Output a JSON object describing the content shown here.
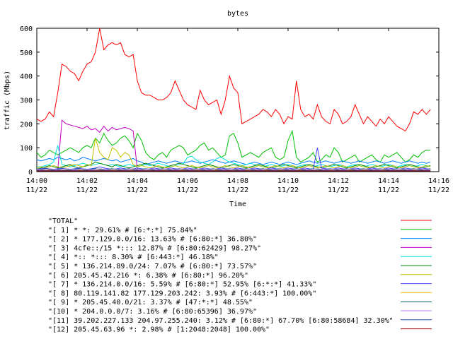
{
  "chart_data": {
    "type": "line",
    "title": "bytes",
    "xlabel": "Time",
    "ylabel": "traffic (Mbps)",
    "ylim": [
      0,
      600
    ],
    "yticks": [
      0,
      100,
      200,
      300,
      400,
      500,
      600
    ],
    "xlim_minutes": [
      "14:00",
      "14:16"
    ],
    "xticks": [
      {
        "time": "14:00",
        "date": "11/22"
      },
      {
        "time": "14:02",
        "date": "11/22"
      },
      {
        "time": "14:04",
        "date": "11/22"
      },
      {
        "time": "14:06",
        "date": "11/22"
      },
      {
        "time": "14:08",
        "date": "11/22"
      },
      {
        "time": "14:10",
        "date": "11/22"
      },
      {
        "time": "14:12",
        "date": "11/22"
      },
      {
        "time": "14:14",
        "date": "11/22"
      },
      {
        "time": "14:16",
        "date": "11/22"
      }
    ],
    "grid": false,
    "legend_position": "bottom",
    "x_start": "14:00",
    "x_step_seconds": 10,
    "series": [
      {
        "name": "\"TOTAL\"",
        "color": "#ff0000",
        "values": [
          220,
          210,
          220,
          250,
          230,
          330,
          450,
          440,
          420,
          410,
          380,
          420,
          450,
          460,
          500,
          600,
          510,
          530,
          540,
          530,
          540,
          490,
          480,
          490,
          380,
          330,
          320,
          320,
          310,
          300,
          300,
          310,
          330,
          380,
          340,
          300,
          280,
          270,
          260,
          340,
          300,
          280,
          290,
          300,
          240,
          300,
          400,
          350,
          330,
          200,
          210,
          220,
          230,
          240,
          260,
          250,
          230,
          260,
          240,
          200,
          230,
          220,
          380,
          260,
          230,
          240,
          220,
          280,
          230,
          210,
          200,
          260,
          240,
          200,
          210,
          230,
          280,
          240,
          200,
          230,
          210,
          190,
          220,
          200,
          230,
          210,
          190,
          180,
          170,
          200,
          250,
          240,
          260,
          240,
          260
        ]
      },
      {
        "name": "\"[ 1] * *: 29.61% # [6:*:*] 75.84%\"",
        "color": "#00c000",
        "values": [
          80,
          60,
          70,
          90,
          80,
          70,
          80,
          90,
          100,
          90,
          80,
          100,
          110,
          100,
          140,
          120,
          160,
          130,
          110,
          120,
          140,
          150,
          130,
          100,
          160,
          130,
          80,
          60,
          50,
          70,
          80,
          60,
          90,
          100,
          110,
          100,
          70,
          80,
          90,
          110,
          120,
          90,
          100,
          80,
          60,
          70,
          150,
          160,
          120,
          60,
          70,
          80,
          70,
          60,
          80,
          90,
          100,
          60,
          50,
          60,
          130,
          170,
          60,
          40,
          50,
          60,
          80,
          40,
          50,
          70,
          60,
          100,
          80,
          40,
          50,
          60,
          70,
          40,
          50,
          60,
          70,
          50,
          40,
          70,
          60,
          70,
          80,
          60,
          40,
          50,
          70,
          60,
          80,
          90,
          90
        ]
      },
      {
        "name": "\"[ 2] * 177.129.0.0/16: 13.63% # [6:80:*] 36.80%\"",
        "color": "#0080ff",
        "values": [
          50,
          45,
          50,
          55,
          50,
          60,
          55,
          50,
          55,
          45,
          50,
          60,
          55,
          50,
          45,
          50,
          55,
          50,
          45,
          50,
          40,
          45,
          50,
          55,
          45,
          40,
          30,
          35,
          40,
          45,
          40,
          35,
          40,
          45,
          40,
          35,
          40,
          45,
          40,
          35,
          40,
          45,
          50,
          45,
          40,
          35,
          40,
          45,
          40,
          35,
          30,
          35,
          40,
          35,
          30,
          35,
          40,
          35,
          30,
          35,
          40,
          35,
          30,
          35,
          40,
          45,
          40,
          35,
          40,
          45,
          40,
          35,
          40,
          45,
          40,
          35,
          40,
          45,
          40,
          35,
          40,
          45,
          40,
          35,
          40,
          45,
          40,
          35,
          40,
          45,
          40,
          35,
          40,
          35,
          40
        ]
      },
      {
        "name": "\"[ 3] 4cfe::/15 *::: 12.87% # [6:80:62429] 98.27%\"",
        "color": "#c000c0",
        "values": [
          5,
          5,
          5,
          5,
          5,
          5,
          215,
          200,
          195,
          190,
          185,
          180,
          190,
          175,
          180,
          165,
          190,
          170,
          185,
          175,
          180,
          185,
          180,
          170,
          10,
          5,
          5,
          5,
          5,
          5,
          5,
          5,
          5,
          5,
          5,
          5,
          5,
          5,
          5,
          5,
          5,
          5,
          5,
          5,
          5,
          5,
          5,
          5,
          5,
          5,
          5,
          5,
          5,
          5,
          5,
          5,
          5,
          5,
          5,
          5,
          5,
          5,
          5,
          5,
          5,
          5,
          5,
          5,
          5,
          5,
          5,
          5,
          5,
          5,
          5,
          5,
          5,
          5,
          5,
          5,
          5,
          5,
          5,
          5,
          5,
          5,
          5,
          5,
          5,
          5,
          5,
          5,
          5,
          5,
          5
        ]
      },
      {
        "name": "\"[ 4] *:: *::: 8.30% # [6:443:*] 46.18%\"",
        "color": "#00e0e0",
        "values": [
          20,
          20,
          25,
          30,
          40,
          110,
          30,
          25,
          20,
          25,
          30,
          35,
          30,
          25,
          30,
          35,
          30,
          25,
          30,
          25,
          20,
          25,
          30,
          25,
          20,
          25,
          30,
          25,
          30,
          35,
          30,
          25,
          20,
          25,
          30,
          35,
          60,
          65,
          50,
          40,
          35,
          30,
          40,
          55,
          60,
          50,
          40,
          35,
          30,
          25,
          30,
          35,
          30,
          25,
          20,
          25,
          30,
          25,
          20,
          25,
          30,
          25,
          20,
          25,
          30,
          25,
          20,
          25,
          30,
          25,
          20,
          25,
          30,
          25,
          20,
          25,
          30,
          25,
          20,
          25,
          30,
          25,
          20,
          25,
          30,
          25,
          20,
          25,
          30,
          25,
          20,
          25,
          30,
          25,
          20
        ]
      },
      {
        "name": "\"[ 5] * 136.214.89.0/24: 7.07% # [6:80:*] 73.57%\"",
        "color": "#008000",
        "values": [
          10,
          15,
          20,
          25,
          20,
          15,
          20,
          25,
          30,
          20,
          15,
          20,
          25,
          30,
          40,
          35,
          30,
          25,
          20,
          30,
          25,
          20,
          15,
          20,
          25,
          30,
          35,
          30,
          25,
          20,
          15,
          20,
          25,
          30,
          35,
          30,
          25,
          20,
          15,
          20,
          25,
          30,
          25,
          20,
          15,
          20,
          25,
          30,
          25,
          20,
          15,
          20,
          25,
          30,
          25,
          20,
          15,
          20,
          25,
          30,
          25,
          20,
          15,
          20,
          25,
          30,
          25,
          20,
          15,
          20,
          25,
          30,
          25,
          20,
          15,
          20,
          25,
          30,
          25,
          20,
          15,
          20,
          25,
          30,
          25,
          20,
          15,
          20,
          25,
          30,
          25,
          20,
          15,
          20,
          25
        ]
      },
      {
        "name": "\"[ 6] 205.45.42.216 *: 6.38% # [6:80:*] 96.20%\"",
        "color": "#c0c000",
        "values": [
          15,
          20,
          15,
          20,
          25,
          20,
          15,
          20,
          25,
          30,
          25,
          20,
          30,
          25,
          140,
          80,
          60,
          50,
          100,
          90,
          60,
          80,
          70,
          30,
          20,
          25,
          20,
          15,
          20,
          25,
          20,
          15,
          20,
          25,
          20,
          15,
          20,
          25,
          20,
          15,
          20,
          25,
          20,
          15,
          20,
          25,
          20,
          15,
          20,
          25,
          20,
          15,
          20,
          25,
          20,
          15,
          20,
          25,
          20,
          15,
          20,
          25,
          20,
          15,
          20,
          25,
          20,
          15,
          20,
          25,
          20,
          15,
          20,
          25,
          20,
          15,
          20,
          25,
          20,
          15,
          20,
          25,
          20,
          15,
          20,
          25,
          20,
          15,
          20,
          25,
          20,
          15,
          20,
          25,
          20
        ]
      },
      {
        "name": "\"[ 7] * 136.214.0.0/16: 5.59% # [6:80:*] 52.95% [6:*:*] 41.33%\"",
        "color": "#4040ff",
        "values": [
          10,
          12,
          15,
          12,
          10,
          12,
          15,
          12,
          10,
          12,
          15,
          12,
          10,
          12,
          15,
          20,
          15,
          12,
          10,
          12,
          15,
          12,
          10,
          12,
          15,
          12,
          10,
          12,
          15,
          12,
          10,
          12,
          15,
          12,
          10,
          12,
          15,
          12,
          10,
          12,
          15,
          12,
          10,
          12,
          15,
          12,
          10,
          12,
          15,
          12,
          10,
          12,
          15,
          12,
          10,
          12,
          15,
          12,
          10,
          12,
          15,
          12,
          10,
          12,
          15,
          12,
          10,
          100,
          15,
          12,
          10,
          12,
          15,
          12,
          10,
          12,
          15,
          12,
          10,
          12,
          15,
          12,
          10,
          12,
          15,
          12,
          10,
          12,
          15,
          12,
          10,
          12,
          15,
          12,
          10
        ]
      },
      {
        "name": "\"[ 8] 80.119.141.82 177.129.203.242: 3.93% # [6:443:*] 100.00%\"",
        "color": "#ffc000",
        "values": [
          5,
          5,
          5,
          8,
          10,
          8,
          5,
          5,
          8,
          10,
          8,
          5,
          5,
          8,
          10,
          8,
          5,
          5,
          8,
          10,
          8,
          5,
          5,
          8,
          10,
          8,
          5,
          5,
          8,
          10,
          8,
          5,
          5,
          8,
          10,
          8,
          5,
          5,
          8,
          10,
          8,
          5,
          5,
          8,
          10,
          8,
          5,
          5,
          8,
          10,
          8,
          5,
          5,
          8,
          10,
          8,
          5,
          5,
          8,
          10,
          8,
          5,
          5,
          8,
          10,
          8,
          5,
          5,
          8,
          10,
          8,
          5,
          5,
          8,
          10,
          8,
          5,
          5,
          8,
          10,
          8,
          5,
          5,
          8,
          10,
          8,
          5,
          5,
          8,
          10,
          8,
          5,
          5,
          8,
          10
        ]
      },
      {
        "name": "\"[ 9] * 205.45.40.0/21: 3.37% # [47:*:*] 48.55%\"",
        "color": "#006060",
        "values": [
          8,
          10,
          12,
          10,
          8,
          10,
          12,
          10,
          8,
          10,
          12,
          10,
          8,
          10,
          12,
          10,
          8,
          10,
          12,
          10,
          8,
          10,
          12,
          10,
          8,
          10,
          12,
          10,
          8,
          10,
          12,
          10,
          8,
          10,
          12,
          10,
          8,
          10,
          12,
          10,
          8,
          10,
          12,
          10,
          8,
          10,
          12,
          10,
          8,
          10,
          12,
          10,
          8,
          10,
          12,
          10,
          8,
          10,
          12,
          10,
          8,
          10,
          12,
          10,
          8,
          10,
          12,
          10,
          8,
          10,
          12,
          10,
          8,
          10,
          12,
          10,
          8,
          10,
          12,
          10,
          8,
          10,
          12,
          10,
          8,
          10,
          12,
          10,
          8,
          10,
          12,
          10,
          8,
          10,
          12
        ]
      },
      {
        "name": "\"[10] * 204.0.0.0/7: 3.16% # [6:80:65396] 36.97%\"",
        "color": "#c080ff",
        "values": [
          10,
          8,
          10,
          12,
          10,
          8,
          10,
          12,
          10,
          8,
          10,
          12,
          10,
          8,
          10,
          12,
          10,
          8,
          10,
          12,
          10,
          8,
          10,
          12,
          10,
          8,
          10,
          12,
          10,
          8,
          10,
          12,
          10,
          8,
          10,
          12,
          10,
          8,
          10,
          12,
          10,
          8,
          10,
          12,
          10,
          8,
          10,
          12,
          10,
          8,
          10,
          12,
          10,
          8,
          10,
          12,
          10,
          8,
          10,
          12,
          10,
          8,
          10,
          12,
          10,
          8,
          10,
          12,
          10,
          8,
          10,
          12,
          10,
          8,
          10,
          12,
          10,
          8,
          10,
          12,
          10,
          8,
          10,
          12,
          10,
          8,
          10,
          12,
          10,
          8,
          10,
          12,
          10,
          8,
          10
        ]
      },
      {
        "name": "\"[11] 39.202.227.133 204.97.255.240: 3.12% # [6:80:*] 67.70% [6:80:58684] 32.30%\"",
        "color": "#2050a0",
        "values": [
          5,
          5,
          5,
          5,
          5,
          5,
          5,
          5,
          5,
          5,
          5,
          5,
          5,
          5,
          5,
          5,
          5,
          5,
          5,
          5,
          5,
          5,
          5,
          5,
          5,
          5,
          5,
          5,
          5,
          5,
          5,
          5,
          5,
          5,
          5,
          5,
          5,
          5,
          5,
          5,
          5,
          5,
          5,
          5,
          5,
          5,
          5,
          5,
          5,
          5,
          5,
          5,
          5,
          5,
          5,
          5,
          5,
          5,
          5,
          5,
          5,
          5,
          5,
          5,
          5,
          5,
          5,
          5,
          5,
          5,
          5,
          5,
          5,
          5,
          5,
          5,
          5,
          5,
          5,
          5,
          5,
          5,
          5,
          5,
          5,
          5,
          5,
          5,
          5,
          5,
          5,
          5,
          5,
          5,
          5
        ]
      },
      {
        "name": "\"[12] 205.45.63.96 *: 2.98% # [1:2048:2048] 100.00%\"",
        "color": "#a00000",
        "values": [
          3,
          3,
          3,
          3,
          3,
          3,
          3,
          3,
          3,
          3,
          3,
          3,
          3,
          3,
          3,
          3,
          3,
          3,
          3,
          3,
          3,
          3,
          3,
          3,
          3,
          3,
          3,
          3,
          3,
          3,
          3,
          3,
          3,
          3,
          3,
          3,
          3,
          3,
          3,
          3,
          3,
          3,
          3,
          3,
          3,
          3,
          3,
          3,
          3,
          3,
          3,
          3,
          3,
          3,
          3,
          3,
          3,
          3,
          3,
          3,
          3,
          3,
          3,
          3,
          3,
          3,
          3,
          3,
          3,
          3,
          3,
          3,
          3,
          3,
          3,
          3,
          3,
          3,
          3,
          3,
          3,
          3,
          3,
          3,
          3,
          3,
          3,
          3,
          3,
          3,
          3,
          3,
          3,
          3,
          3
        ]
      }
    ]
  }
}
